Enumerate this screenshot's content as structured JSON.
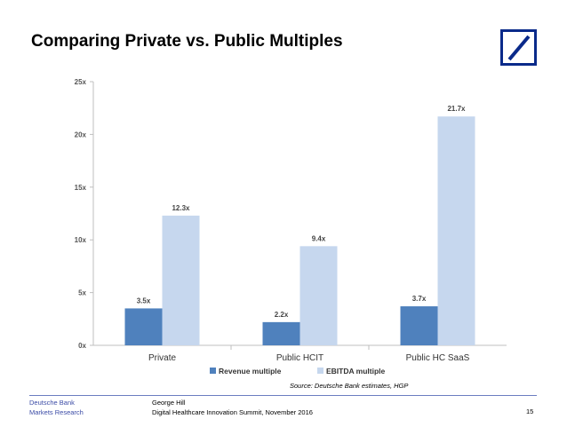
{
  "title": "Comparing Private vs. Public Multiples",
  "source": "Source: Deutsche Bank estimates, HGP",
  "footer": {
    "company": "Deutsche Bank",
    "division": "Markets Research",
    "author": "George Hill",
    "event": "Digital Healthcare Innovation Summit, November 2016",
    "page": "15"
  },
  "colors": {
    "revenue": "#4f81bd",
    "ebitda": "#c6d7ee",
    "logo": "#0a2a8a",
    "footer_text": "#3b4ba6"
  },
  "chart_data": {
    "type": "bar",
    "categories": [
      "Private",
      "Public HCIT",
      "Public HC SaaS"
    ],
    "series": [
      {
        "name": "Revenue multiple",
        "values": [
          3.5,
          2.2,
          3.7
        ],
        "labels": [
          "3.5x",
          "2.2x",
          "3.7x"
        ]
      },
      {
        "name": "EBITDA  multiple",
        "values": [
          12.3,
          9.4,
          21.7
        ],
        "labels": [
          "12.3x",
          "9.4x",
          "21.7x"
        ]
      }
    ],
    "ylim": [
      0,
      25
    ],
    "yticks": [
      0,
      5,
      10,
      15,
      20,
      25
    ],
    "ytick_labels": [
      "0x",
      "5x",
      "10x",
      "15x",
      "20x",
      "25x"
    ],
    "legend": "bottom"
  }
}
